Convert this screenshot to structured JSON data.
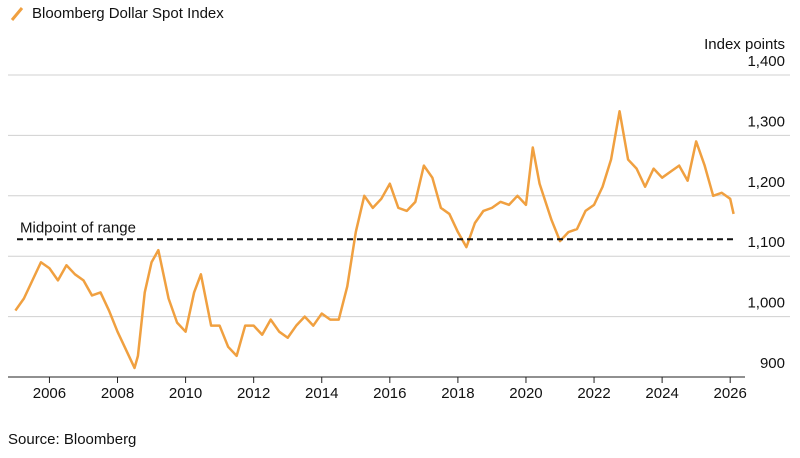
{
  "chart_data": {
    "type": "line",
    "title": "Bloomberg Dollar Spot Index",
    "y_label": "Index points",
    "source": "Source: Bloomberg",
    "x": [
      2005.0,
      2005.25,
      2005.5,
      2005.75,
      2006.0,
      2006.25,
      2006.5,
      2006.75,
      2007.0,
      2007.25,
      2007.5,
      2007.75,
      2008.0,
      2008.25,
      2008.5,
      2008.6,
      2008.8,
      2009.0,
      2009.2,
      2009.5,
      2009.75,
      2010.0,
      2010.25,
      2010.45,
      2010.75,
      2011.0,
      2011.25,
      2011.5,
      2011.75,
      2012.0,
      2012.25,
      2012.5,
      2012.75,
      2013.0,
      2013.25,
      2013.5,
      2013.75,
      2014.0,
      2014.25,
      2014.5,
      2014.75,
      2015.0,
      2015.25,
      2015.5,
      2015.75,
      2016.0,
      2016.25,
      2016.5,
      2016.75,
      2017.0,
      2017.25,
      2017.5,
      2017.75,
      2018.0,
      2018.25,
      2018.5,
      2018.75,
      2019.0,
      2019.25,
      2019.5,
      2019.75,
      2020.0,
      2020.2,
      2020.4,
      2020.75,
      2021.0,
      2021.25,
      2021.5,
      2021.75,
      2022.0,
      2022.25,
      2022.5,
      2022.75,
      2023.0,
      2023.25,
      2023.5,
      2023.75,
      2024.0,
      2024.25,
      2024.5,
      2024.75,
      2025.0,
      2025.25,
      2025.5,
      2025.75,
      2026.0,
      2026.1
    ],
    "series": [
      {
        "name": "Bloomberg Dollar Spot Index",
        "color": "#f0a040",
        "values": [
          1010,
          1030,
          1060,
          1090,
          1080,
          1060,
          1085,
          1070,
          1060,
          1035,
          1040,
          1010,
          975,
          945,
          915,
          935,
          1040,
          1090,
          1110,
          1030,
          990,
          975,
          1040,
          1070,
          985,
          985,
          950,
          935,
          985,
          985,
          970,
          995,
          975,
          965,
          985,
          1000,
          985,
          1005,
          995,
          995,
          1050,
          1140,
          1200,
          1180,
          1195,
          1220,
          1180,
          1175,
          1190,
          1250,
          1230,
          1180,
          1170,
          1140,
          1115,
          1155,
          1175,
          1180,
          1190,
          1185,
          1200,
          1185,
          1280,
          1220,
          1160,
          1125,
          1140,
          1145,
          1175,
          1185,
          1215,
          1260,
          1340,
          1260,
          1245,
          1215,
          1245,
          1230,
          1240,
          1250,
          1225,
          1290,
          1250,
          1200,
          1205,
          1195,
          1170
        ]
      }
    ],
    "reference_line": {
      "value": 1128,
      "label": "Midpoint of range"
    },
    "xlim": [
      2004.9,
      2026.2
    ],
    "xticks": [
      2006,
      2008,
      2010,
      2012,
      2014,
      2016,
      2018,
      2020,
      2022,
      2024,
      2026
    ],
    "ylim": [
      900,
      1400
    ],
    "yticks": [
      900,
      {
        "value": 1000,
        "label": "1,000"
      },
      {
        "value": 1100,
        "label": "1,100"
      },
      {
        "value": 1200,
        "label": "1,200"
      },
      {
        "value": 1300,
        "label": "1,300"
      },
      {
        "value": 1400,
        "label": "1,400"
      }
    ],
    "grid": true
  }
}
